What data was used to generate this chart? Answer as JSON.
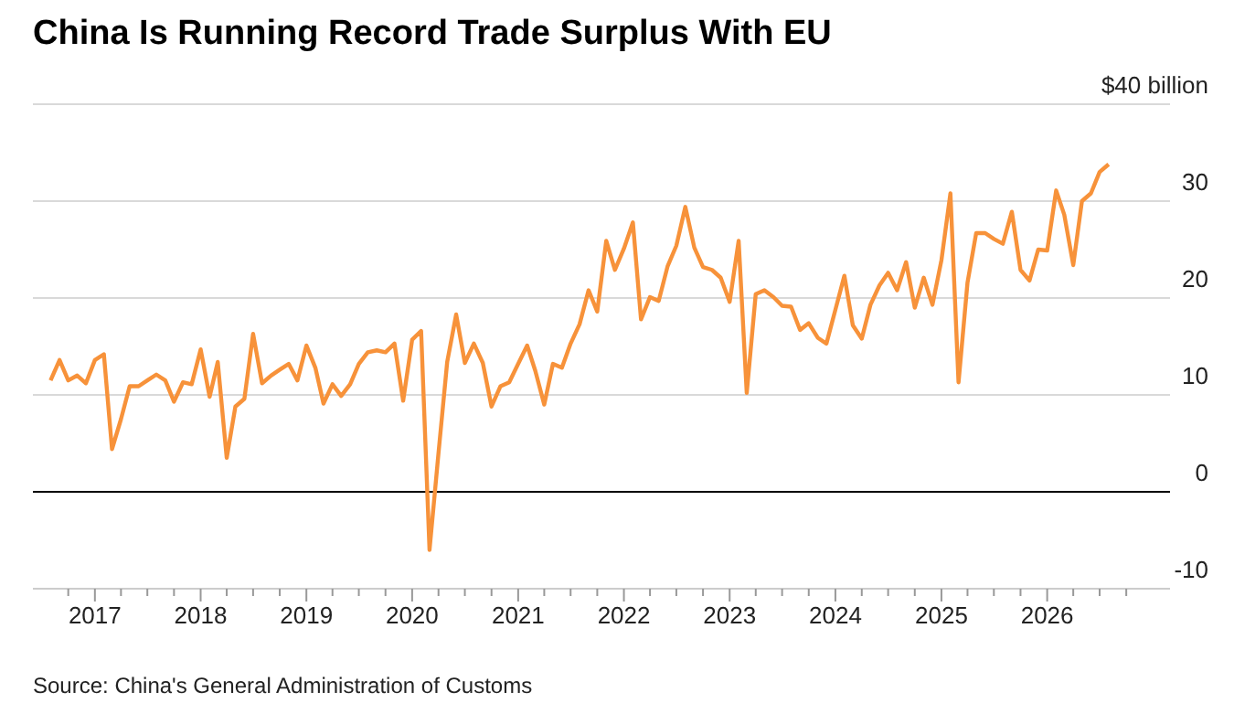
{
  "chart_data": {
    "type": "line",
    "title": "China Is Running Record Trade Surplus With EU",
    "annotations": [
      "Source: China's General Administration of Customs"
    ],
    "color": "#f7923a",
    "x": [
      "2016-08",
      "2016-09",
      "2016-10",
      "2016-11",
      "2016-12",
      "2017-01",
      "2017-02",
      "2017-03",
      "2017-04",
      "2017-05",
      "2017-06",
      "2017-07",
      "2017-08",
      "2017-09",
      "2017-10",
      "2017-11",
      "2017-12",
      "2018-01",
      "2018-02",
      "2018-03",
      "2018-04",
      "2018-05",
      "2018-06",
      "2018-07",
      "2018-08",
      "2018-09",
      "2018-10",
      "2018-11",
      "2018-12",
      "2019-01",
      "2019-02",
      "2019-03",
      "2019-04",
      "2019-05",
      "2019-06",
      "2019-07",
      "2019-08",
      "2019-09",
      "2019-10",
      "2019-11",
      "2019-12",
      "2020-01",
      "2020-02",
      "2020-03",
      "2020-04",
      "2020-05",
      "2020-06",
      "2020-07",
      "2020-08",
      "2020-09",
      "2020-10",
      "2020-11",
      "2020-12",
      "2021-01",
      "2021-02",
      "2021-03",
      "2021-04",
      "2021-05",
      "2021-06",
      "2021-07",
      "2021-08",
      "2021-09",
      "2021-10",
      "2021-11",
      "2021-12",
      "2022-01",
      "2022-02",
      "2022-03",
      "2022-04",
      "2022-05",
      "2022-06",
      "2022-07",
      "2022-08",
      "2022-09",
      "2022-10",
      "2022-11",
      "2022-12",
      "2023-01",
      "2023-02",
      "2023-03",
      "2023-04",
      "2023-05",
      "2023-06",
      "2023-07",
      "2023-08",
      "2023-09",
      "2023-10",
      "2023-11",
      "2023-12",
      "2024-01",
      "2024-02",
      "2024-03",
      "2024-04",
      "2024-05",
      "2024-06",
      "2024-07",
      "2024-08",
      "2024-09",
      "2024-10",
      "2024-11",
      "2024-12",
      "2025-01",
      "2025-02",
      "2025-03",
      "2025-04",
      "2025-05",
      "2025-06",
      "2025-07",
      "2025-08",
      "2025-09",
      "2025-10",
      "2025-11",
      "2025-12",
      "2026-01",
      "2026-02",
      "2026-03",
      "2026-04",
      "2026-05",
      "2026-06",
      "2026-07",
      "2026-08"
    ],
    "values": [
      11.5,
      13.6,
      11.5,
      12.0,
      11.2,
      13.6,
      14.2,
      4.4,
      7.5,
      10.9,
      10.9,
      11.5,
      12.1,
      11.5,
      9.3,
      11.3,
      11.1,
      14.7,
      9.8,
      13.4,
      3.5,
      8.8,
      9.6,
      16.3,
      11.2,
      12.0,
      12.6,
      13.2,
      11.5,
      15.1,
      12.8,
      9.1,
      11.1,
      9.9,
      11.1,
      13.2,
      14.4,
      14.6,
      14.4,
      15.3,
      9.4,
      15.7,
      16.6,
      -6.0,
      4.0,
      13.4,
      18.3,
      13.3,
      15.3,
      13.3,
      8.8,
      10.9,
      11.3,
      13.2,
      15.1,
      12.5,
      9.0,
      13.2,
      12.8,
      15.3,
      17.3,
      20.8,
      18.6,
      25.9,
      22.9,
      25.1,
      27.8,
      17.8,
      20.1,
      19.7,
      23.3,
      25.4,
      29.4,
      25.2,
      23.2,
      22.9,
      22.1,
      19.6,
      25.9,
      10.2,
      20.4,
      20.8,
      20.1,
      19.2,
      19.1,
      16.7,
      17.4,
      15.9,
      15.3,
      18.8,
      22.3,
      17.2,
      15.8,
      19.3,
      21.3,
      22.6,
      20.8,
      23.7,
      19.0,
      22.1,
      19.3,
      23.9,
      30.8,
      11.3,
      21.6,
      26.7,
      26.7,
      26.1,
      25.6,
      28.9,
      22.9,
      21.8,
      25.0,
      24.9,
      31.1,
      28.6,
      23.4,
      30.0,
      30.8,
      33.0,
      33.8
    ],
    "xlim": [
      "2016-06",
      "2027-03"
    ],
    "xticks": [
      {
        "value": "2016-10",
        "label": null
      },
      {
        "value": "2017",
        "label": "2017"
      },
      {
        "value": "2017-04",
        "label": null
      },
      {
        "value": "2017-07",
        "label": null
      },
      {
        "value": "2017-10",
        "label": null
      },
      {
        "value": "2018",
        "label": "2018"
      },
      {
        "value": "2018-04",
        "label": null
      },
      {
        "value": "2018-07",
        "label": null
      },
      {
        "value": "2018-10",
        "label": null
      },
      {
        "value": "2019",
        "label": "2019"
      },
      {
        "value": "2019-04",
        "label": null
      },
      {
        "value": "2019-07",
        "label": null
      },
      {
        "value": "2019-10",
        "label": null
      },
      {
        "value": "2020",
        "label": "2020"
      },
      {
        "value": "2020-04",
        "label": null
      },
      {
        "value": "2020-07",
        "label": null
      },
      {
        "value": "2020-10",
        "label": null
      },
      {
        "value": "2021",
        "label": "2021"
      },
      {
        "value": "2021-04",
        "label": null
      },
      {
        "value": "2021-07",
        "label": null
      },
      {
        "value": "2021-10",
        "label": null
      },
      {
        "value": "2022",
        "label": "2022"
      },
      {
        "value": "2022-04",
        "label": null
      },
      {
        "value": "2022-07",
        "label": null
      },
      {
        "value": "2022-10",
        "label": null
      },
      {
        "value": "2023",
        "label": "2023"
      },
      {
        "value": "2023-04",
        "label": null
      },
      {
        "value": "2023-07",
        "label": null
      },
      {
        "value": "2023-10",
        "label": null
      },
      {
        "value": "2024",
        "label": "2024"
      },
      {
        "value": "2024-04",
        "label": null
      },
      {
        "value": "2024-07",
        "label": null
      },
      {
        "value": "2024-10",
        "label": null
      },
      {
        "value": "2025",
        "label": "2025"
      },
      {
        "value": "2025-04",
        "label": null
      },
      {
        "value": "2025-07",
        "label": null
      },
      {
        "value": "2025-10",
        "label": null
      },
      {
        "value": "2026",
        "label": "2026"
      },
      {
        "value": "2026-04",
        "label": null
      },
      {
        "value": "2026-07",
        "label": null
      },
      {
        "value": "2026-10",
        "label": null
      }
    ],
    "ylim": [
      -10,
      40
    ],
    "yticks": [
      -10,
      0,
      10,
      20,
      30,
      {
        "value": 40,
        "label": "$40 billion"
      }
    ],
    "grid": "y",
    "ref_lines": [
      {
        "axis": "y",
        "value": 0,
        "color": "#000000"
      }
    ]
  }
}
